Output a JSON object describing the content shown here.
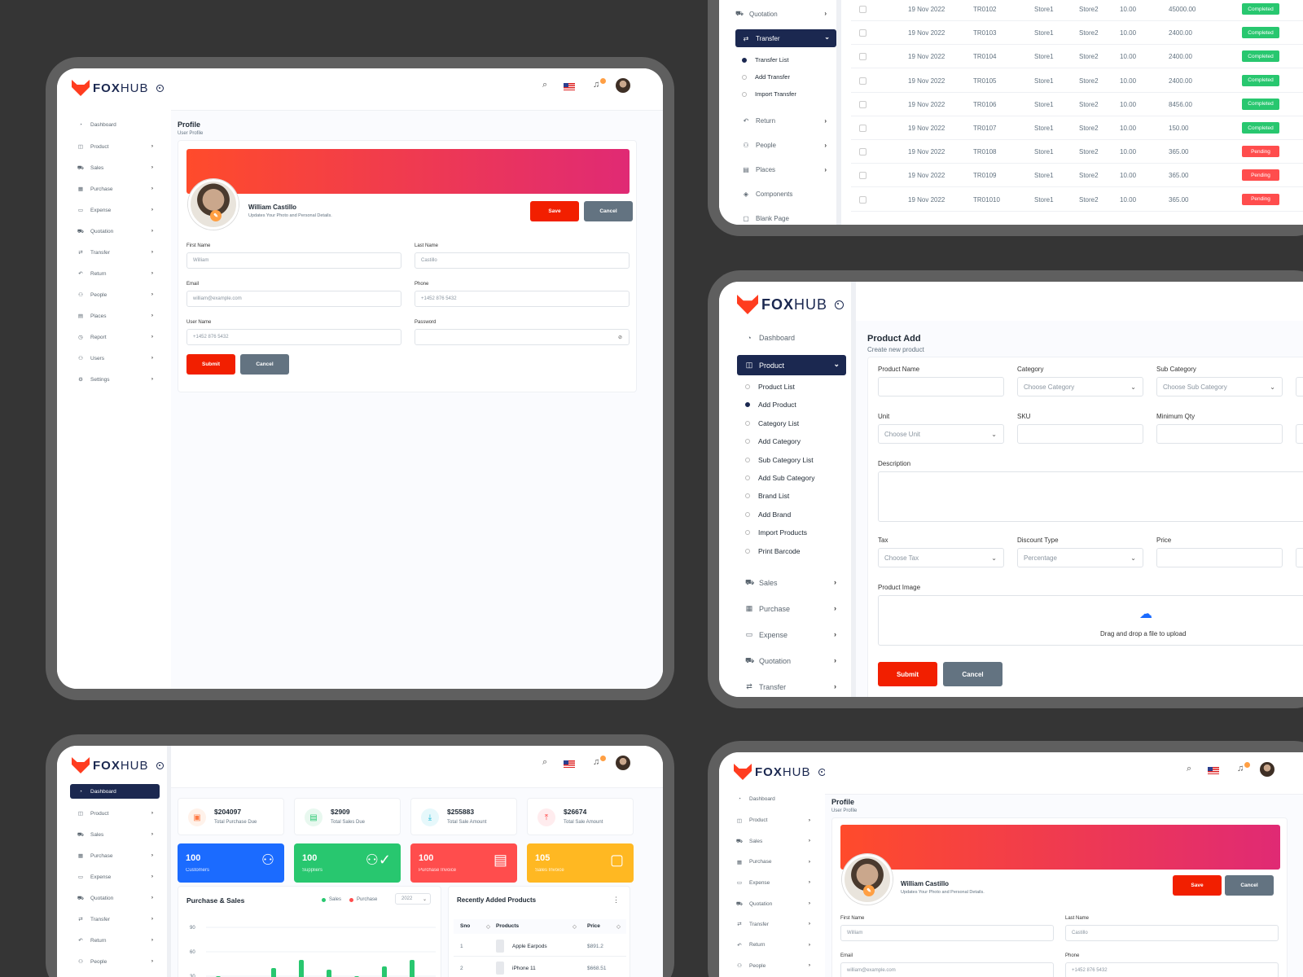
{
  "brand": {
    "name_bold": "FOX",
    "name_light": "HUB"
  },
  "colors": {
    "primary": "#1b2850",
    "accent_red": "#f21f00",
    "gray_button": "#637381",
    "completed": "#28c76f",
    "pending": "#ff4d4d",
    "banner_from": "#ff4b2b",
    "banner_to": "#e02a74"
  },
  "nav": {
    "dashboard": "Dashboard",
    "product": "Product",
    "sales": "Sales",
    "purchase": "Purchase",
    "expense": "Expense",
    "quotation": "Quotation",
    "transfer": "Transfer",
    "return": "Return",
    "people": "People",
    "places": "Places",
    "report": "Report",
    "users": "Users",
    "settings": "Settings",
    "components": "Components",
    "blank_page": "Blank Page"
  },
  "transfer_submenu": [
    "Transfer List",
    "Add Transfer",
    "Import Transfer"
  ],
  "product_submenu": [
    "Product List",
    "Add Product",
    "Category List",
    "Add Category",
    "Sub Category List",
    "Add Sub Category",
    "Brand List",
    "Add Brand",
    "Import Products",
    "Print Barcode"
  ],
  "profile": {
    "title": "Profile",
    "subtitle": "User Profile",
    "name": "William Castillo",
    "desc": "Updates Your Photo and Personal Details.",
    "save": "Save",
    "cancel": "Cancel",
    "submit": "Submit",
    "first_name_label": "First Name",
    "first_name": "William",
    "last_name_label": "Last Name",
    "last_name": "Castillo",
    "email_label": "Email",
    "email": "william@example.com",
    "phone_label": "Phone",
    "phone": "+1452 876 5432",
    "username_label": "User Name",
    "username": "+1452 876 5432",
    "password_label": "Password"
  },
  "transfers": [
    {
      "date": "19 Nov 2022",
      "ref": "TR0102",
      "from": "Store1",
      "to": "Store2",
      "qty": "10.00",
      "amount": "45000.00",
      "status": "Completed"
    },
    {
      "date": "19 Nov 2022",
      "ref": "TR0103",
      "from": "Store1",
      "to": "Store2",
      "qty": "10.00",
      "amount": "2400.00",
      "status": "Completed"
    },
    {
      "date": "19 Nov 2022",
      "ref": "TR0104",
      "from": "Store1",
      "to": "Store2",
      "qty": "10.00",
      "amount": "2400.00",
      "status": "Completed"
    },
    {
      "date": "19 Nov 2022",
      "ref": "TR0105",
      "from": "Store1",
      "to": "Store2",
      "qty": "10.00",
      "amount": "2400.00",
      "status": "Completed"
    },
    {
      "date": "19 Nov 2022",
      "ref": "TR0106",
      "from": "Store1",
      "to": "Store2",
      "qty": "10.00",
      "amount": "8456.00",
      "status": "Completed"
    },
    {
      "date": "19 Nov 2022",
      "ref": "TR0107",
      "from": "Store1",
      "to": "Store2",
      "qty": "10.00",
      "amount": "150.00",
      "status": "Completed"
    },
    {
      "date": "19 Nov 2022",
      "ref": "TR0108",
      "from": "Store1",
      "to": "Store2",
      "qty": "10.00",
      "amount": "365.00",
      "status": "Pending"
    },
    {
      "date": "19 Nov 2022",
      "ref": "TR0109",
      "from": "Store1",
      "to": "Store2",
      "qty": "10.00",
      "amount": "365.00",
      "status": "Pending"
    },
    {
      "date": "19 Nov 2022",
      "ref": "TR01010",
      "from": "Store1",
      "to": "Store2",
      "qty": "10.00",
      "amount": "365.00",
      "status": "Pending"
    }
  ],
  "product_add": {
    "title": "Product Add",
    "subtitle": "Create new product",
    "product_name": "Product Name",
    "category": "Category",
    "category_ph": "Choose Category",
    "sub_category": "Sub Category",
    "sub_category_ph": "Choose Sub Category",
    "unit": "Unit",
    "unit_ph": "Choose Unit",
    "sku": "SKU",
    "min_qty": "Minimum Qty",
    "description": "Description",
    "tax": "Tax",
    "tax_ph": "Choose Tax",
    "discount_type": "Discount Type",
    "discount_value": "Percentage",
    "price": "Price",
    "product_image": "Product Image",
    "upload_text": "Drag and drop a file to upload",
    "submit": "Submit",
    "cancel": "Cancel"
  },
  "dashboard": {
    "stats": [
      {
        "value": "$204097",
        "label": "Total Purchase Due"
      },
      {
        "value": "$2909",
        "label": "Total Sales Due"
      },
      {
        "value": "$255883",
        "label": "Total Sale Amount"
      },
      {
        "value": "$26674",
        "label": "Total Sale Amount"
      }
    ],
    "counts": [
      {
        "value": "100",
        "label": "Customers",
        "color": "#1b6bff"
      },
      {
        "value": "100",
        "label": "Suppliers",
        "color": "#28c76f"
      },
      {
        "value": "100",
        "label": "Purchase Invoice",
        "color": "#ff4d4d"
      },
      {
        "value": "105",
        "label": "Sales Invoice",
        "color": "#ffb822"
      }
    ],
    "chart_title": "Purchase & Sales",
    "legend_sales": "Sales",
    "legend_purchase": "Purchase",
    "year": "2022",
    "recent_title": "Recently Added Products",
    "recent_headers": [
      "Sno",
      "Products",
      "Price"
    ],
    "recent_rows": [
      {
        "sno": "1",
        "product": "Apple Earpods",
        "price": "$891.2"
      },
      {
        "sno": "2",
        "product": "iPhone 11",
        "price": "$668.51"
      }
    ]
  },
  "chart_data": {
    "type": "bar",
    "title": "Purchase & Sales",
    "ylim": [
      0,
      90
    ],
    "y_ticks": [
      "90",
      "60",
      "30"
    ],
    "series": [
      {
        "name": "Sales",
        "values": [
          30,
          25,
          40,
          50,
          38,
          30,
          42,
          50
        ]
      }
    ]
  }
}
